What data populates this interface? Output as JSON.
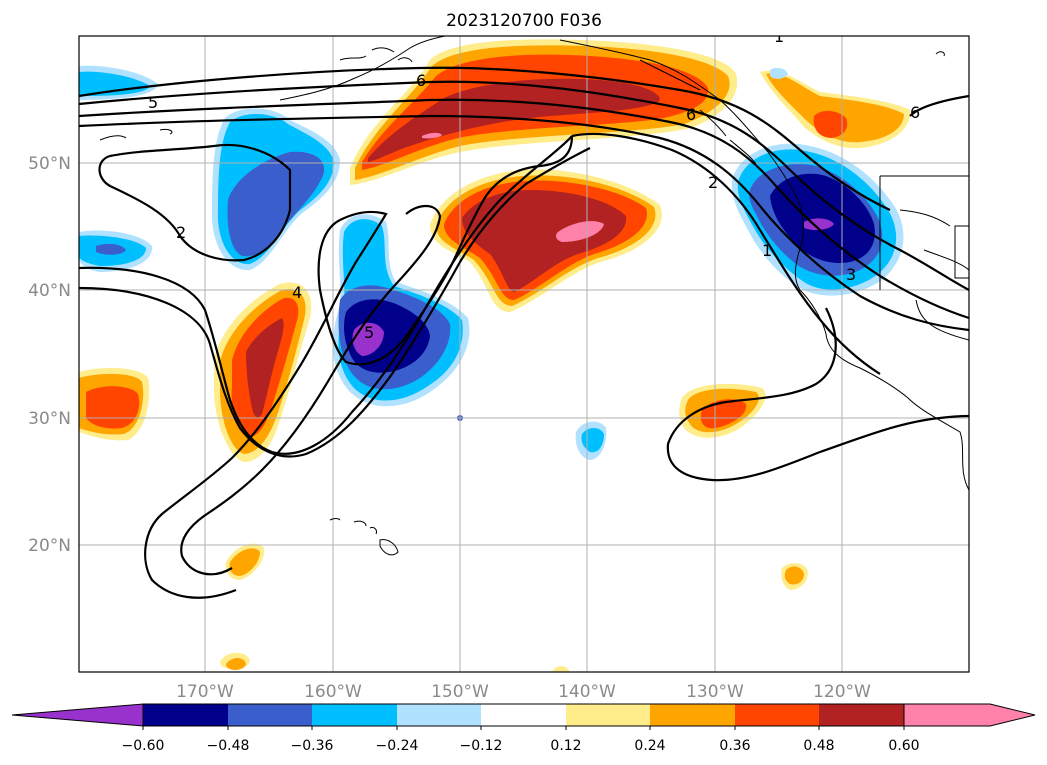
{
  "title": "2023120700 F036",
  "lat_labels": [
    "50°N",
    "40°N",
    "30°N",
    "20°N"
  ],
  "lon_labels": [
    "170°W",
    "160°W",
    "150°W",
    "140°W",
    "130°W",
    "120°W"
  ],
  "contour_labels": [
    "5",
    "6",
    "2",
    "4",
    "5",
    "6",
    "2",
    "1",
    "3",
    "6",
    "1"
  ],
  "colorbar": {
    "ticks": [
      "−0.60",
      "−0.48",
      "−0.36",
      "−0.24",
      "−0.12",
      "0.12",
      "0.24",
      "0.36",
      "0.48",
      "0.60"
    ],
    "colors": [
      "#9932cc",
      "#00008b",
      "#3a5fcd",
      "#00bfff",
      "#b0e2ff",
      "#ffffff",
      "#ffec8b",
      "#ffa500",
      "#ff4500",
      "#b22222",
      "#ff82ab",
      "#ff82ab"
    ]
  },
  "colors": {
    "pink": "#ff82ab",
    "darkred": "#b22222",
    "orangered": "#ff4500",
    "orange": "#ffa500",
    "yellow": "#ffec8b",
    "lightblue": "#b0e2ff",
    "deepskyblue": "#00bfff",
    "royalblue": "#3a5fcd",
    "navy": "#00008b",
    "purple": "#9932cc"
  }
}
